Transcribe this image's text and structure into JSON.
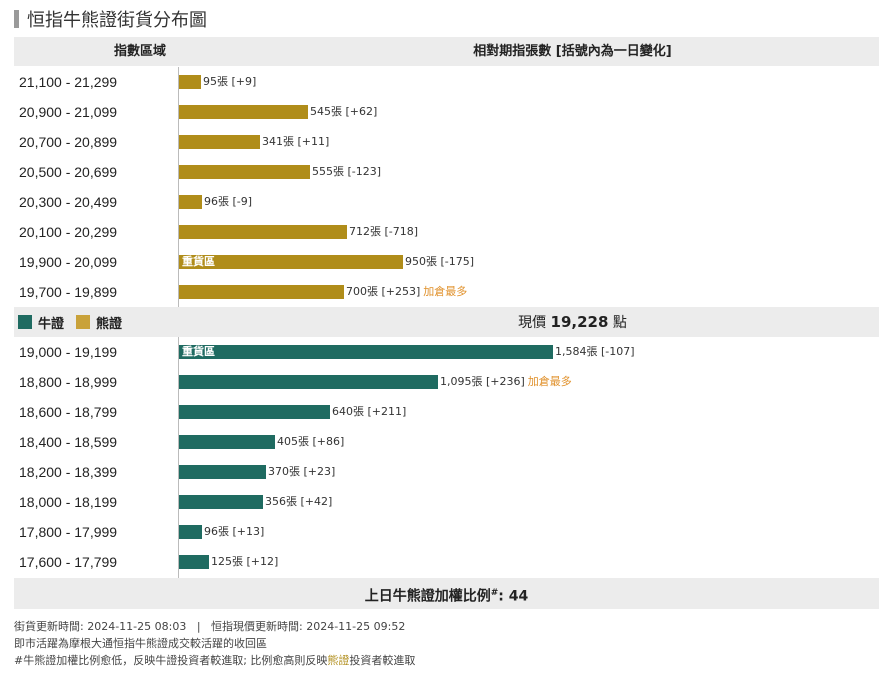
{
  "title": "恒指牛熊證街貨分布圖",
  "header": {
    "left": "指數區域",
    "right": "相對期指張數 [括號內為一日變化]"
  },
  "colors": {
    "bear": "#b08d1a",
    "bull": "#1f6b61",
    "highlight": "#e0902a"
  },
  "legend": {
    "bull": "牛證",
    "bear": "熊證"
  },
  "price": {
    "label": "現價",
    "value": "19,228",
    "unit": "點"
  },
  "footer": {
    "label": "上日牛熊證加權比例",
    "marker": "#",
    "value": "44"
  },
  "notes": {
    "update_line": "街貨更新時間: 2024-11-25 08:03   |   恒指現價更新時間: 2024-11-25 09:52",
    "line2": "即市活躍為摩根大通恒指牛熊證成交較活躍的收回區",
    "line3_a": "#牛熊證加權比例愈低，反映牛證投資者較進取; 比例愈高則反映",
    "line3_hl": "熊證",
    "line3_b": "投資者較進取"
  },
  "chart_data": {
    "type": "bar",
    "orientation": "horizontal",
    "title": "恒指牛熊證街貨分布圖",
    "bear": [
      {
        "range": "21,100 - 21,299",
        "value": 95,
        "label": "95張 [+9]",
        "tag": "",
        "note": ""
      },
      {
        "range": "20,900 - 21,099",
        "value": 545,
        "label": "545張 [+62]",
        "tag": "",
        "note": ""
      },
      {
        "range": "20,700 - 20,899",
        "value": 341,
        "label": "341張 [+11]",
        "tag": "",
        "note": ""
      },
      {
        "range": "20,500 - 20,699",
        "value": 555,
        "label": "555張 [-123]",
        "tag": "",
        "note": ""
      },
      {
        "range": "20,300 - 20,499",
        "value": 96,
        "label": "96張 [-9]",
        "tag": "",
        "note": ""
      },
      {
        "range": "20,100 - 20,299",
        "value": 712,
        "label": "712張 [-718]",
        "tag": "",
        "note": ""
      },
      {
        "range": "19,900 - 20,099",
        "value": 950,
        "label": "950張 [-175]",
        "tag": "重貨區",
        "note": ""
      },
      {
        "range": "19,700 - 19,899",
        "value": 700,
        "label": "700張 [+253]",
        "tag": "",
        "note": "加倉最多"
      }
    ],
    "bull": [
      {
        "range": "19,000 - 19,199",
        "value": 1584,
        "label": "1,584張 [-107]",
        "tag": "重貨區",
        "note": ""
      },
      {
        "range": "18,800 - 18,999",
        "value": 1095,
        "label": "1,095張 [+236]",
        "tag": "",
        "note": "加倉最多"
      },
      {
        "range": "18,600 - 18,799",
        "value": 640,
        "label": "640張 [+211]",
        "tag": "",
        "note": ""
      },
      {
        "range": "18,400 - 18,599",
        "value": 405,
        "label": "405張 [+86]",
        "tag": "",
        "note": ""
      },
      {
        "range": "18,200 - 18,399",
        "value": 370,
        "label": "370張 [+23]",
        "tag": "",
        "note": ""
      },
      {
        "range": "18,000 - 18,199",
        "value": 356,
        "label": "356張 [+42]",
        "tag": "",
        "note": ""
      },
      {
        "range": "17,800 - 17,999",
        "value": 96,
        "label": "96張 [+13]",
        "tag": "",
        "note": ""
      },
      {
        "range": "17,600 - 17,799",
        "value": 125,
        "label": "125張 [+12]",
        "tag": "",
        "note": ""
      }
    ]
  }
}
